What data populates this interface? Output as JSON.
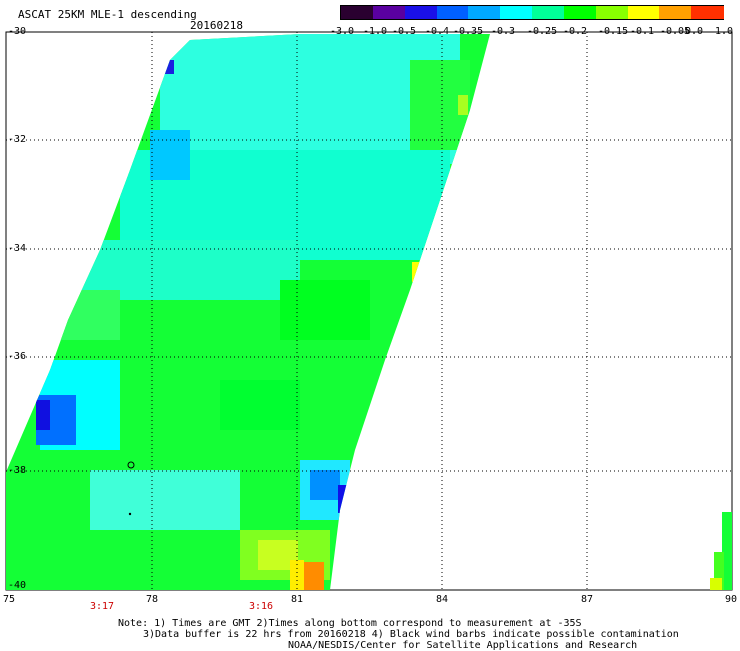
{
  "header": {
    "title": "ASCAT 25KM MLE-1 descending",
    "date": "20160218"
  },
  "colorbar": {
    "labels": [
      "-3.0",
      "-1.0",
      "-0.5",
      "-0.4",
      "-0.35",
      "-0.3",
      "-0.25",
      "-0.2",
      "-0.15",
      "-0.1",
      "-0.05",
      "0.0",
      "1.0"
    ],
    "colors": [
      "#2a0030",
      "#5a00a0",
      "#1a10e8",
      "#0060ff",
      "#00a8ff",
      "#00ffff",
      "#00ff99",
      "#00ff00",
      "#88ff00",
      "#ffff00",
      "#ffa000",
      "#ff3000"
    ]
  },
  "axes": {
    "lat_labels": [
      "-30",
      "-32",
      "-34",
      "-36",
      "-38",
      "-40"
    ],
    "lon_labels": [
      "75",
      "78",
      "81",
      "84",
      "87",
      "90"
    ]
  },
  "times": [
    "3:17",
    "3:16"
  ],
  "notes": {
    "line1": "Note: 1) Times are GMT 2)Times along bottom correspond to measurement at -35S",
    "line2": "3)Data buffer is 22 hrs from 20160218 4) Black wind barbs indicate possible contamination",
    "line3": "NOAA/NESDIS/Center for Satellite Applications and Research"
  }
}
